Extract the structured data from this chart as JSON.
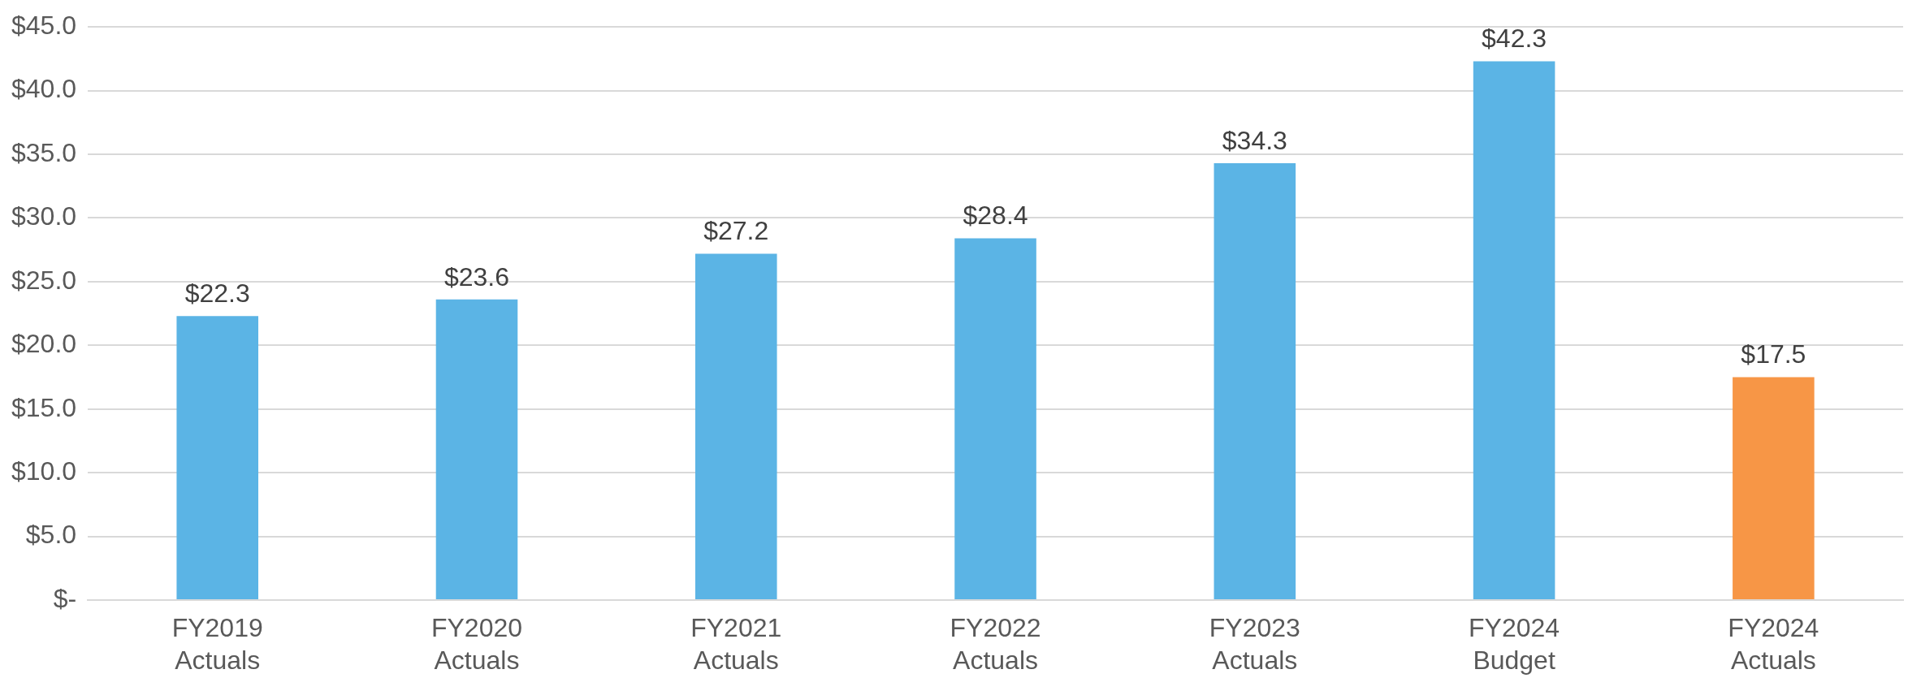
{
  "chart_data": {
    "type": "bar",
    "categories": [
      "FY2019 Actuals",
      "FY2020 Actuals",
      "FY2021 Actuals",
      "FY2022 Actuals",
      "FY2023 Actuals",
      "FY2024 Budget",
      "FY2024 Actuals"
    ],
    "values": [
      22.3,
      23.6,
      27.2,
      28.4,
      34.3,
      42.3,
      17.5
    ],
    "colors": [
      "#5bb4e5",
      "#5bb4e5",
      "#5bb4e5",
      "#5bb4e5",
      "#5bb4e5",
      "#5bb4e5",
      "#f79646"
    ],
    "value_labels": [
      "$22.3",
      "$23.6",
      "$27.2",
      "$28.4",
      "$34.3",
      "$42.3",
      "$17.5"
    ],
    "ylim": [
      0,
      45
    ],
    "yticks": [
      {
        "value": 0,
        "label": "$-"
      },
      {
        "value": 5,
        "label": "$5.0"
      },
      {
        "value": 10,
        "label": "$10.0"
      },
      {
        "value": 15,
        "label": "$15.0"
      },
      {
        "value": 20,
        "label": "$20.0"
      },
      {
        "value": 25,
        "label": "$25.0"
      },
      {
        "value": 30,
        "label": "$30.0"
      },
      {
        "value": 35,
        "label": "$35.0"
      },
      {
        "value": 40,
        "label": "$40.0"
      },
      {
        "value": 45,
        "label": "$45.0"
      }
    ],
    "grid": "y"
  }
}
